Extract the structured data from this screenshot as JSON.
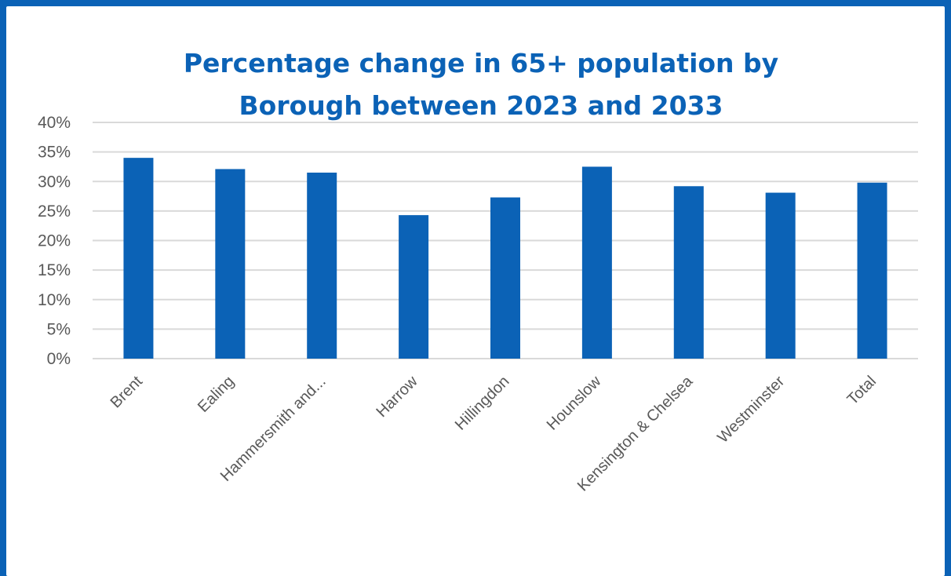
{
  "chart_data": {
    "type": "bar",
    "title_lines": [
      "Percentage change in 65+ population by",
      "Borough between 2023 and 2033"
    ],
    "categories": [
      "Brent",
      "Ealing",
      "Hammersmith and...",
      "Harrow",
      "Hillingdon",
      "Hounslow",
      "Kensington & Chelsea",
      "Westminster",
      "Total"
    ],
    "values": [
      34.0,
      32.1,
      31.5,
      24.3,
      27.3,
      32.5,
      29.2,
      28.1,
      29.8
    ],
    "unit": "%",
    "ylim": [
      0,
      40
    ],
    "yticks": [
      "0%",
      "5%",
      "10%",
      "15%",
      "20%",
      "25%",
      "30%",
      "35%",
      "40%"
    ],
    "grid": true,
    "legend": "none",
    "bar_color": "#0b62b6"
  }
}
